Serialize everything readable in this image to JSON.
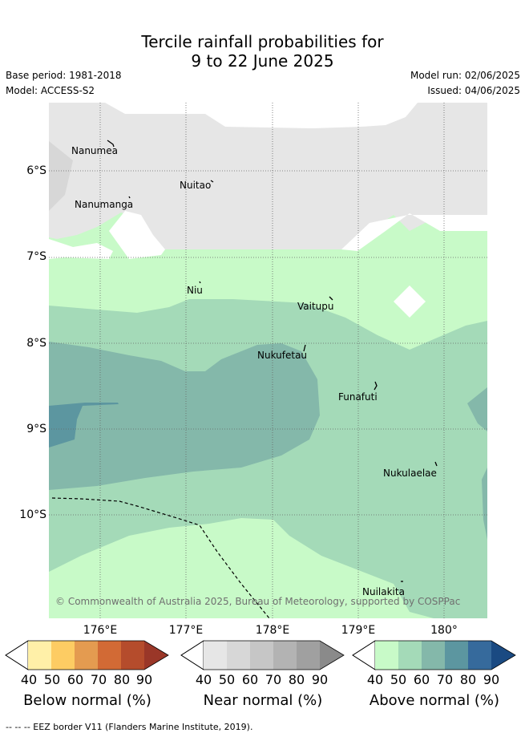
{
  "title": {
    "line1": "Tercile rainfall probabilities for",
    "line2": "9 to 22 June 2025"
  },
  "meta": {
    "base_period": "Base period: 1981-2018",
    "model": "Model: ACCESS-S2",
    "model_run": "Model run: 02/06/2025",
    "issued": "Issued: 04/06/2025"
  },
  "axes": {
    "y_ticks": [
      "6°S",
      "7°S",
      "8°S",
      "9°S",
      "10°S"
    ],
    "x_ticks": [
      "176°E",
      "177°E",
      "178°E",
      "179°E",
      "180°"
    ]
  },
  "places": [
    "Nanumea",
    "Nuitao",
    "Nanumanga",
    "Niu",
    "Vaitupu",
    "Nukufetau",
    "Funafuti",
    "Nukulaelae",
    "Nuilakita"
  ],
  "copyright": "© Commonwealth of Australia 2025, Bureau of Meteorology, supported by COSPPac",
  "legend": {
    "ticks": [
      "40",
      "50",
      "60",
      "70",
      "80",
      "90"
    ],
    "below": {
      "title": "Below normal (%)",
      "colors": [
        "#fff0a8",
        "#fdcc63",
        "#e49b50",
        "#d26a35",
        "#b54c2c",
        "#9a3728"
      ]
    },
    "near": {
      "title": "Near normal (%)",
      "colors": [
        "#e6e6e6",
        "#d7d7d7",
        "#c6c6c6",
        "#b3b3b3",
        "#a0a0a0",
        "#8a8a8a"
      ]
    },
    "above": {
      "title": "Above normal (%)",
      "colors": [
        "#c8fac8",
        "#a4dab8",
        "#84b8aa",
        "#5c96a0",
        "#366a9c",
        "#1a4a82"
      ]
    }
  },
  "footer": "-- -- -- EEZ border V11 (Flanders Marine Institute, 2019)."
}
